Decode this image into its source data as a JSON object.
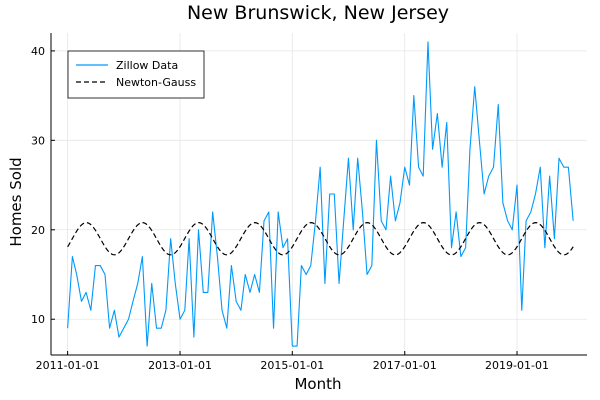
{
  "chart_data": {
    "type": "line",
    "title": "New Brunswick, New Jersey",
    "xlabel": "Month",
    "ylabel": "Homes Sold",
    "x_tick_labels": [
      "2011-01-01",
      "2013-01-01",
      "2015-01-01",
      "2017-01-01",
      "2019-01-01"
    ],
    "x_ticks": [
      "2011-01-01",
      "2013-01-01",
      "2015-01-01",
      "2017-01-01",
      "2019-01-01"
    ],
    "y_ticks": [
      10,
      20,
      30,
      40
    ],
    "y_tick_labels": [
      "10",
      "20",
      "30",
      "40"
    ],
    "xlim": [
      "2010-09-15",
      "2020-03-31"
    ],
    "ylim": [
      6,
      42
    ],
    "grid": true,
    "legend_position": "top-left",
    "x_start": "2011-01-01",
    "x_step": "1 month",
    "series": [
      {
        "name": "Zillow Data",
        "color": "#009AFA",
        "style": "solid",
        "values": [
          9,
          17,
          15,
          12,
          13,
          11,
          16,
          16,
          15,
          9,
          11,
          8,
          9,
          10,
          12,
          14,
          17,
          7,
          14,
          9,
          9,
          11,
          19,
          14,
          10,
          11,
          19,
          8,
          20,
          13,
          13,
          22,
          17,
          11,
          9,
          16,
          12,
          11,
          15,
          13,
          15,
          13,
          21,
          22,
          9,
          22,
          18,
          19,
          7,
          7,
          16,
          15,
          16,
          21,
          27,
          14,
          24,
          24,
          14,
          21,
          28,
          20,
          28,
          22,
          15,
          16,
          30,
          21,
          20,
          26,
          21,
          23,
          27,
          25,
          35,
          27,
          26,
          41,
          29,
          33,
          27,
          32,
          18,
          22,
          17,
          18,
          29,
          36,
          30,
          24,
          26,
          27,
          34,
          23,
          21,
          20,
          25,
          11,
          21,
          22,
          24,
          27,
          18,
          26,
          19,
          28,
          27,
          27,
          21
        ]
      },
      {
        "name": "Newton-Gauss",
        "color": "#000000",
        "style": "dashed",
        "mean": 19,
        "amplitude": 1.8,
        "period_months": 12,
        "peak_month": 4
      }
    ]
  }
}
